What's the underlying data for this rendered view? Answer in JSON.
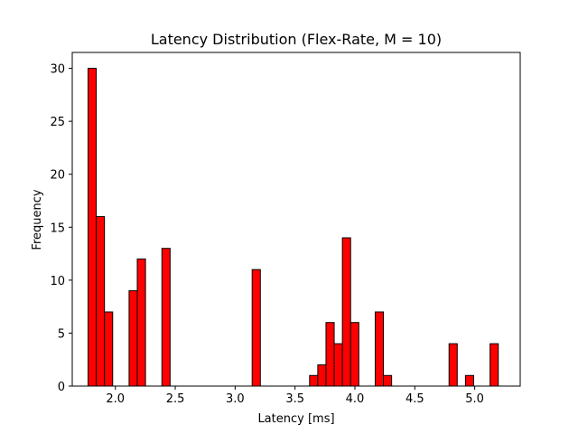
{
  "chart_data": {
    "type": "bar",
    "title": "Latency Distribution (Flex-Rate, M = 10)",
    "xlabel": "Latency [ms]",
    "ylabel": "Frequency",
    "xlim": [
      1.64,
      5.38
    ],
    "ylim": [
      0,
      31.5
    ],
    "xticks": [
      2.0,
      2.5,
      3.0,
      3.5,
      4.0,
      4.5,
      5.0
    ],
    "xtick_labels": [
      "2.0",
      "2.5",
      "3.0",
      "3.5",
      "4.0",
      "4.5",
      "5.0"
    ],
    "yticks": [
      0,
      5,
      10,
      15,
      20,
      25,
      30
    ],
    "ytick_labels": [
      "0",
      "5",
      "10",
      "15",
      "20",
      "25",
      "30"
    ],
    "grid": false,
    "bar_color": "#ff0000",
    "edge_color": "#000000",
    "bin_start": 1.772,
    "bin_width": 0.0685,
    "values": [
      30,
      16,
      7,
      0,
      0,
      9,
      12,
      0,
      0,
      13,
      0,
      0,
      0,
      0,
      0,
      0,
      0,
      0,
      0,
      0,
      11,
      0,
      0,
      0,
      0,
      0,
      0,
      1,
      2,
      6,
      4,
      14,
      6,
      0,
      0,
      7,
      1,
      0,
      0,
      0,
      0,
      0,
      0,
      0,
      4,
      0,
      1,
      0,
      0,
      4
    ]
  }
}
